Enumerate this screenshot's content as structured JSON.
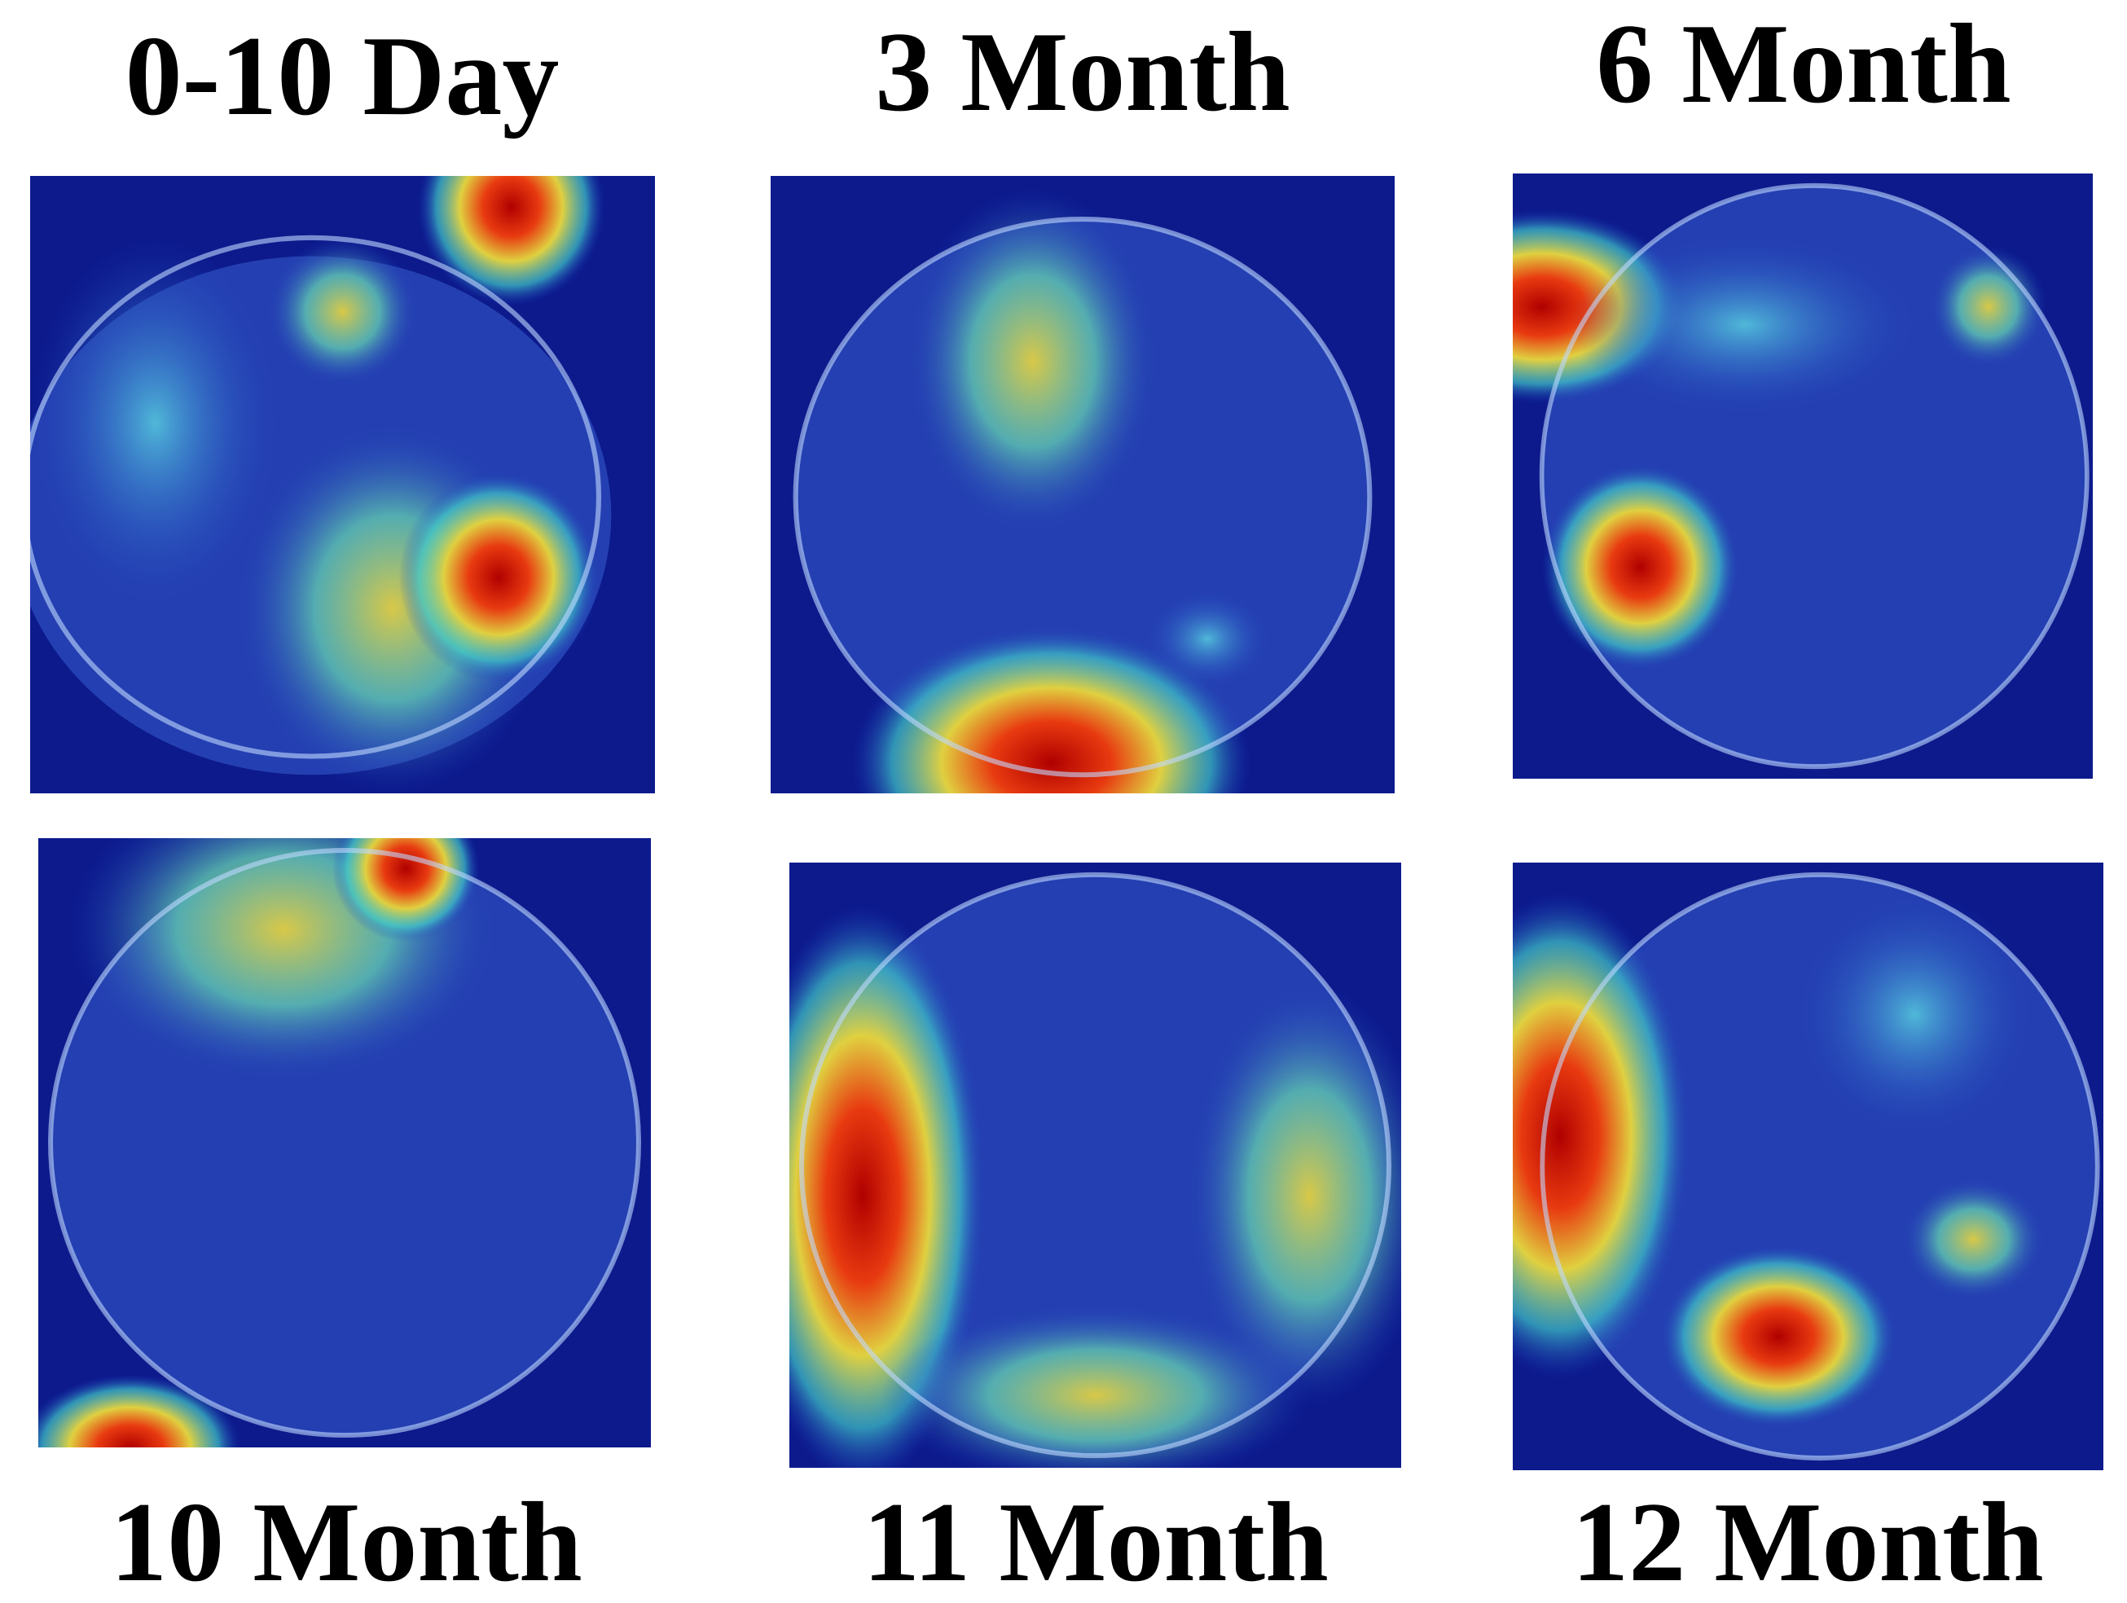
{
  "panels": [
    {
      "label": "0-10 Day"
    },
    {
      "label": "3 Month"
    },
    {
      "label": "6 Month"
    },
    {
      "label": "10 Month"
    },
    {
      "label": "11 Month"
    },
    {
      "label": "12 Month"
    }
  ]
}
